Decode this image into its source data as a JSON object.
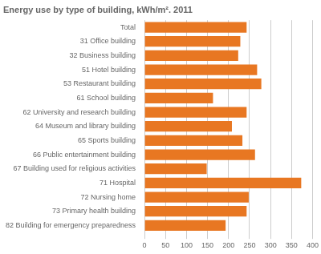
{
  "chart_data": {
    "type": "bar",
    "orientation": "horizontal",
    "title": "Energy use by type of building, kWh/m². 2011",
    "categories": [
      "Total",
      "31 Office building",
      "32 Business building",
      "51 Hotel building",
      "53 Restaurant building",
      "61 School building",
      "62 University and research building",
      "64 Museum and library building",
      "65 Sports building",
      "66 Public entertainment building",
      "67 Building used for religious activities",
      "71 Hospital",
      "72 Nursing home",
      "73 Primary health building",
      "82 Building for emergency preparedness"
    ],
    "values": [
      243,
      228,
      223,
      268,
      278,
      163,
      243,
      208,
      233,
      263,
      148,
      373,
      248,
      243,
      193
    ],
    "color": "#E87722",
    "xlim": [
      0,
      400
    ],
    "xticks": [
      0,
      50,
      100,
      150,
      200,
      250,
      300,
      350,
      400
    ],
    "grid": true
  }
}
